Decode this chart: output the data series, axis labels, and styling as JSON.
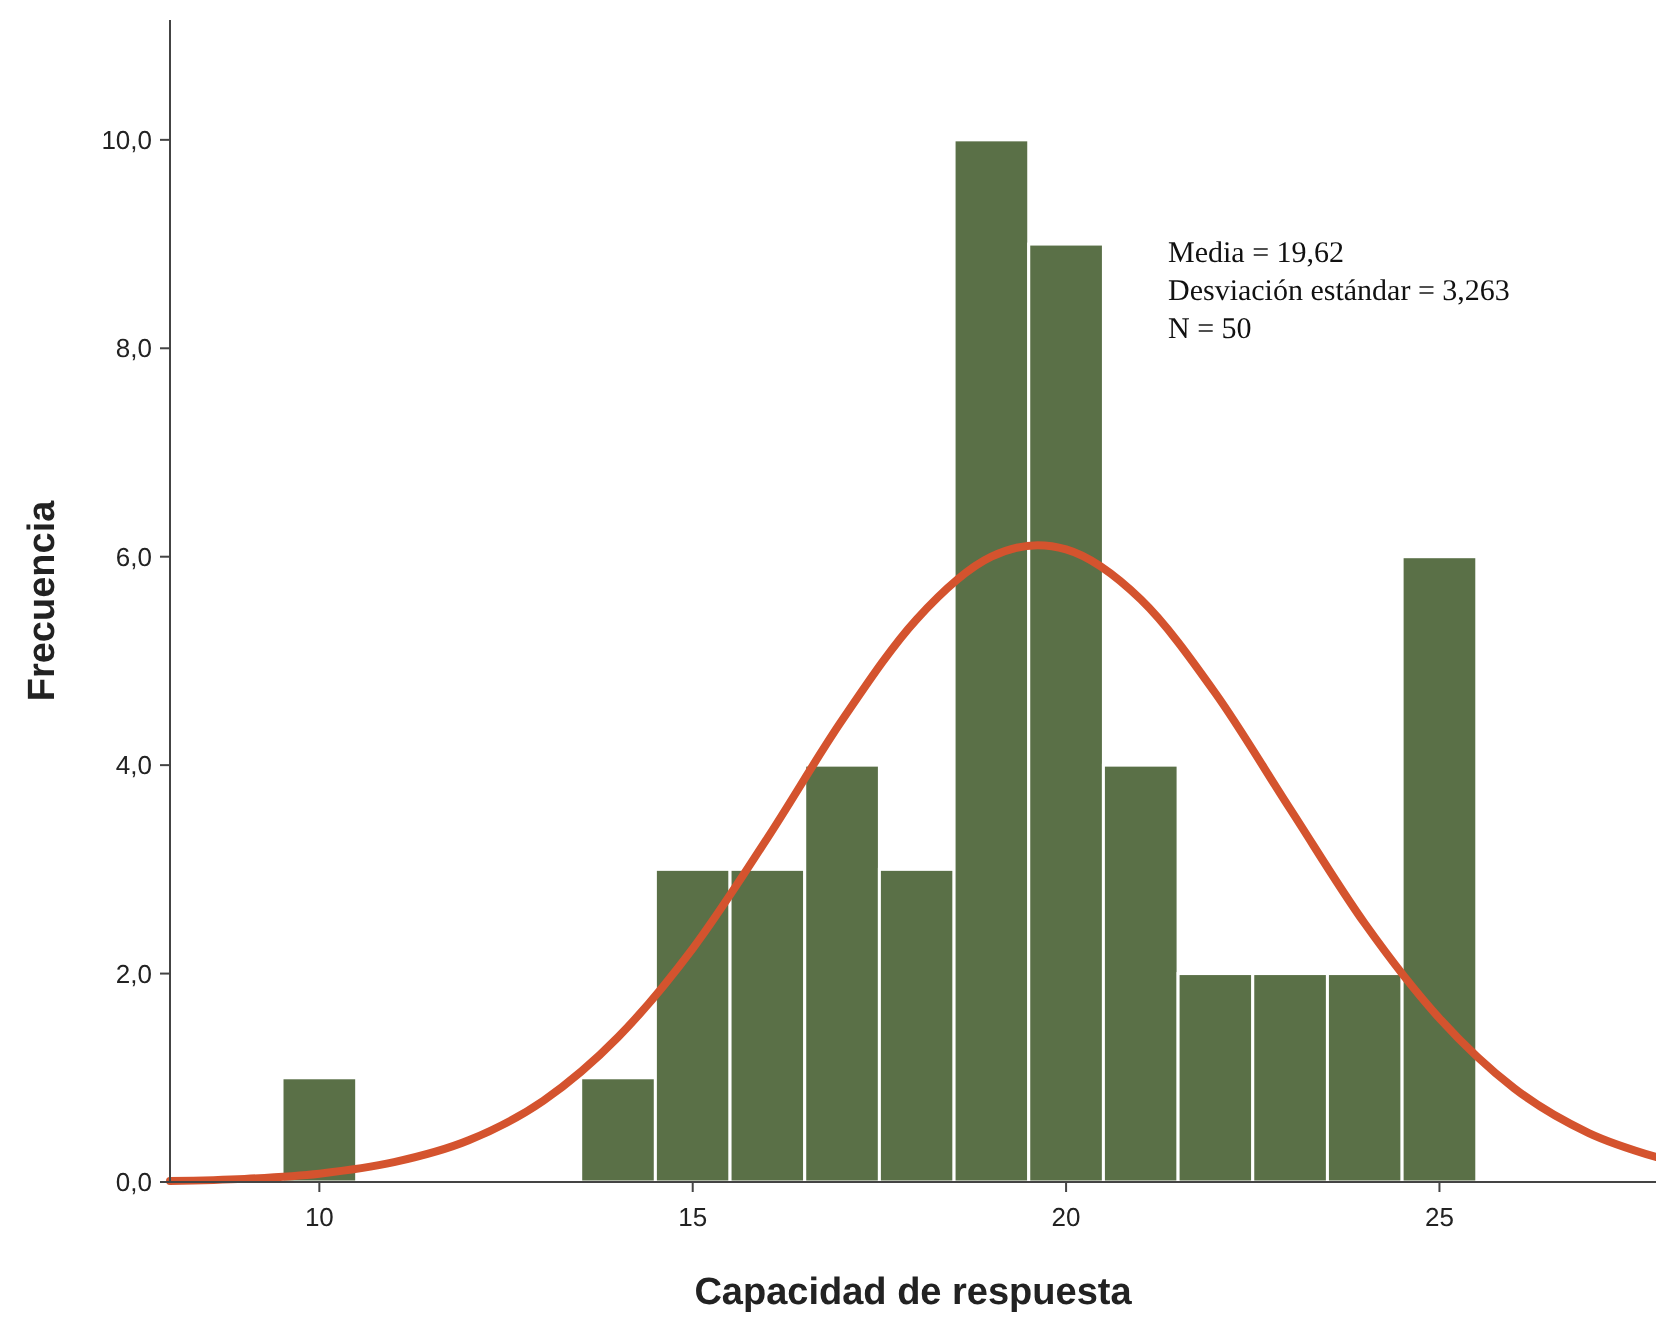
{
  "chart_data": {
    "type": "histogram",
    "xlabel": "Capacidad de respuesta",
    "ylabel": "Frecuencia",
    "bins": [
      9.5,
      10.5,
      11.5,
      12.5,
      13.5,
      14.5,
      15.5,
      16.5,
      17.5,
      18.5,
      19.5,
      20.5,
      21.5,
      22.5,
      23.5,
      24.5,
      25.5
    ],
    "values": [
      1,
      0,
      0,
      0,
      1,
      3,
      3,
      4,
      3,
      10,
      9,
      4,
      2,
      2,
      2,
      6
    ],
    "color": "#5a7047",
    "series": [
      {
        "type": "line",
        "color": "#d4532e",
        "x": [
          8,
          9,
          10,
          11,
          12,
          13,
          14,
          15,
          16,
          17,
          18,
          19,
          19.62,
          20,
          21,
          22,
          23,
          24,
          25,
          26,
          27,
          27.9
        ],
        "values": [
          0.01,
          0.03,
          0.08,
          0.19,
          0.4,
          0.78,
          1.39,
          2.24,
          3.3,
          4.43,
          5.4,
          6.0,
          6.11,
          6.07,
          5.59,
          4.69,
          3.58,
          2.48,
          1.57,
          0.9,
          0.47,
          0.24
        ]
      }
    ],
    "xlim": [
      8,
      27.9
    ],
    "ylim": [
      0,
      11.15
    ],
    "xticks": [
      10,
      15,
      20,
      25
    ],
    "yticks": [
      {
        "value": 0,
        "label": "0,0"
      },
      {
        "value": 2,
        "label": "2,0"
      },
      {
        "value": 4,
        "label": "4,0"
      },
      {
        "value": 6,
        "label": "6,0"
      },
      {
        "value": 8,
        "label": "8,0"
      },
      {
        "value": 10,
        "label": "10,0"
      }
    ],
    "annotations": [
      "Media = 19,62",
      "Desviación estándar = 3,263",
      "N = 50"
    ],
    "grid": false
  }
}
